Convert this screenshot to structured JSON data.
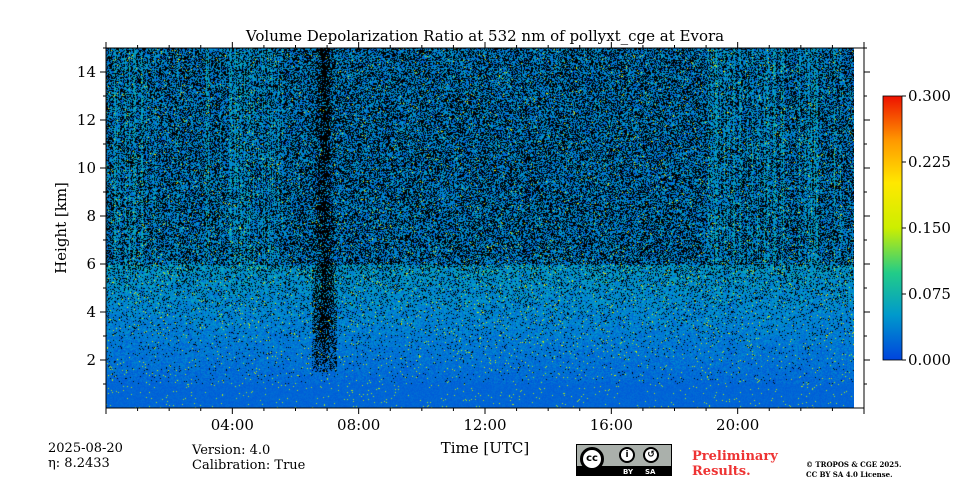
{
  "chart_data": {
    "type": "heatmap",
    "title": "Volume Depolarization Ratio at 532 nm of pollyxt_cge at Evora",
    "xlabel": "Time [UTC]",
    "ylabel": "Height [km]",
    "xlim": [
      0,
      24
    ],
    "ylim": [
      0,
      15
    ],
    "x_ticks": [
      {
        "value": 4,
        "label": "04:00"
      },
      {
        "value": 8,
        "label": "08:00"
      },
      {
        "value": 12,
        "label": "12:00"
      },
      {
        "value": 16,
        "label": "16:00"
      },
      {
        "value": 20,
        "label": "20:00"
      }
    ],
    "y_ticks": [
      {
        "value": 2,
        "label": "2"
      },
      {
        "value": 4,
        "label": "4"
      },
      {
        "value": 6,
        "label": "6"
      },
      {
        "value": 8,
        "label": "8"
      },
      {
        "value": 10,
        "label": "10"
      },
      {
        "value": 12,
        "label": "12"
      },
      {
        "value": 14,
        "label": "14"
      }
    ],
    "colorbar": {
      "min": 0.0,
      "max": 0.3,
      "ticks": [
        "0.000",
        "0.075",
        "0.150",
        "0.225",
        "0.300"
      ],
      "colors": [
        "#0055dd",
        "#0099cc",
        "#22cc88",
        "#99ee00",
        "#ffee00",
        "#ff8800",
        "#ee2200"
      ]
    },
    "data_time_range_hours": [
      0,
      23.75
    ],
    "description_values": {
      "boundary_layer_top_km": 6,
      "near_surface_ratio": 0.02,
      "upper_noise_ratio": 0.06,
      "clear_column_time_hours": [
        6.5,
        7.3
      ],
      "clear_column_bottom_km": 1.5
    }
  },
  "info": {
    "date": "2025-08-20",
    "eta": "η: 8.2433",
    "version": "Version: 4.0",
    "calibration": "Calibration: True"
  },
  "badge": {
    "cc": "cc",
    "by": "BY",
    "sa": "SA"
  },
  "preliminary": {
    "line1": "Preliminary",
    "line2": "Results."
  },
  "copyright": {
    "line1": "© TROPOS & CGE 2025.",
    "line2": "CC BY SA 4.0 License."
  }
}
